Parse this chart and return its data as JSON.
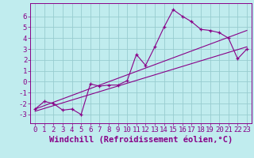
{
  "xlabel": "Windchill (Refroidissement éolien,°C)",
  "background_color": "#c0ecee",
  "grid_color": "#98ccd0",
  "line_color": "#880088",
  "xlim": [
    -0.5,
    23.5
  ],
  "ylim": [
    -3.8,
    7.2
  ],
  "xticks": [
    0,
    1,
    2,
    3,
    4,
    5,
    6,
    7,
    8,
    9,
    10,
    11,
    12,
    13,
    14,
    15,
    16,
    17,
    18,
    19,
    20,
    21,
    22,
    23
  ],
  "yticks": [
    -3,
    -2,
    -1,
    0,
    1,
    2,
    3,
    4,
    5,
    6
  ],
  "data_x": [
    0,
    1,
    2,
    3,
    4,
    5,
    6,
    7,
    8,
    9,
    10,
    11,
    12,
    13,
    14,
    15,
    16,
    17,
    18,
    19,
    20,
    21,
    22,
    23
  ],
  "data_y": [
    -2.5,
    -1.8,
    -2.0,
    -2.6,
    -2.5,
    -3.0,
    -0.2,
    -0.4,
    -0.3,
    -0.3,
    0.1,
    2.5,
    1.5,
    3.2,
    5.0,
    6.6,
    6.0,
    5.5,
    4.8,
    4.7,
    4.5,
    4.0,
    2.1,
    3.0
  ],
  "trend1_x": [
    0,
    23
  ],
  "trend1_y": [
    -2.5,
    4.7
  ],
  "trend2_x": [
    0,
    23
  ],
  "trend2_y": [
    -2.7,
    3.2
  ],
  "xlabel_fontsize": 7.5,
  "tick_fontsize": 6.5
}
